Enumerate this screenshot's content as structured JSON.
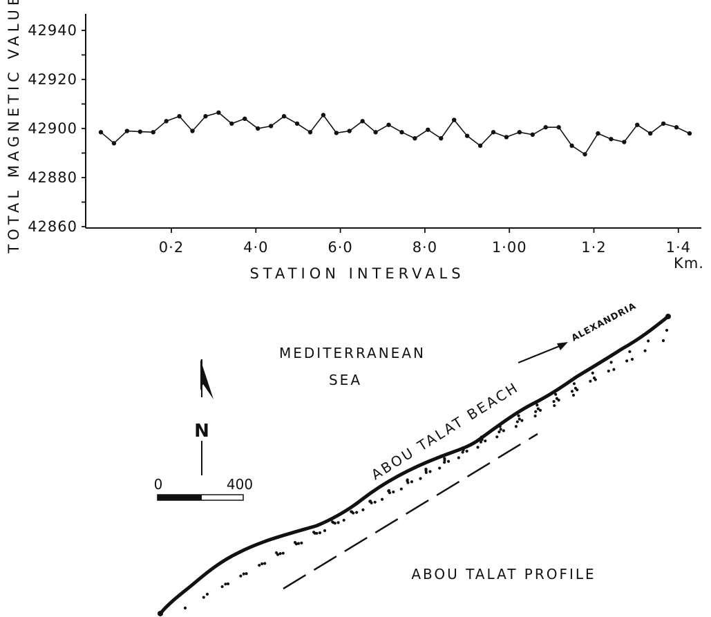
{
  "chart_data": {
    "type": "line",
    "ylabel": "TOTAL MAGNETIC VALUES",
    "xlabel": "STATION INTERVALS",
    "x_unit": "Km.",
    "ylim": [
      42860,
      42940
    ],
    "yticks": [
      "42860",
      "42880",
      "42900",
      "42920",
      "42940"
    ],
    "xtick_labels": [
      "0·2",
      "4·0",
      "6·0",
      "8·0",
      "1·00",
      "1·2",
      "1·4"
    ],
    "series": [
      {
        "values": [
          42898.5,
          42894,
          42899,
          42898.7,
          42898.5,
          42903,
          42905,
          42899,
          42905,
          42906.5,
          42902,
          42904,
          42900,
          42901,
          42905,
          42902,
          42898.5,
          42905.5,
          42898.2,
          42899,
          42903,
          42898.5,
          42901.5,
          42898.5,
          42896,
          42899.5,
          42896,
          42903.5,
          42897,
          42893,
          42898.5,
          42896.5,
          42898.5,
          42897.5,
          42900.5,
          42900.5,
          42893,
          42889.5,
          42898,
          42895.7,
          42894.5,
          42901.5,
          42898,
          42902,
          42900.5,
          42898
        ]
      }
    ]
  },
  "map": {
    "sea_label_line1": "MEDITERRANEAN",
    "sea_label_line2": "SEA",
    "city_label": "ALEXANDRIA",
    "beach_label": "ABOU TALAT BEACH",
    "profile_label": "ABOU TALAT PROFILE",
    "north_label": "N",
    "scale_start": "0",
    "scale_end": "400"
  }
}
